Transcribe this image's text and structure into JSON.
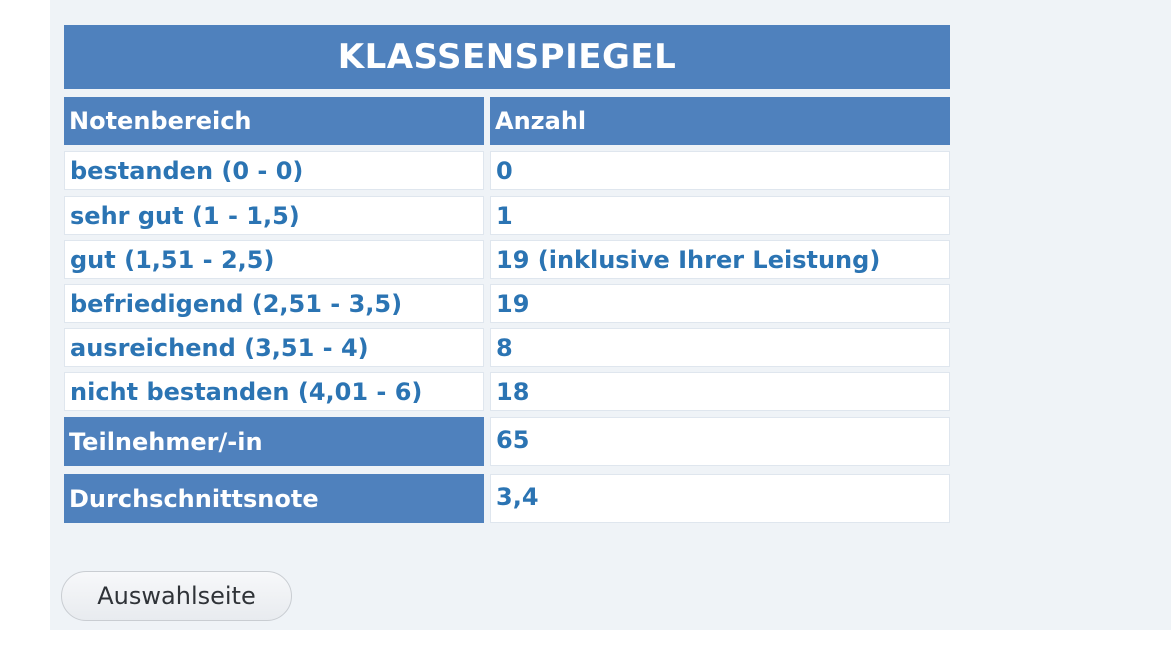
{
  "title": "KLASSENSPIEGEL",
  "headers": {
    "range": "Notenbereich",
    "count": "Anzahl"
  },
  "rows": [
    {
      "range": "bestanden (0 - 0)",
      "count": "0"
    },
    {
      "range": "sehr gut (1 - 1,5)",
      "count": "1"
    },
    {
      "range": "gut (1,51 - 2,5)",
      "count": "19 (inklusive Ihrer Leistung)"
    },
    {
      "range": "befriedigend (2,51 - 3,5)",
      "count": "19"
    },
    {
      "range": "ausreichend (3,51 - 4)",
      "count": "8"
    },
    {
      "range": "nicht bestanden (4,01 - 6)",
      "count": "18"
    }
  ],
  "summary": {
    "participants_label": "Teilnehmer/-in",
    "participants_value": "65",
    "average_label": "Durchschnittsnote",
    "average_value": "3,4"
  },
  "button": {
    "label": "Auswahlseite"
  },
  "colors": {
    "header_bg": "#4f81bd",
    "body_text": "#2b74b3",
    "panel_bg": "#eff3f7"
  }
}
